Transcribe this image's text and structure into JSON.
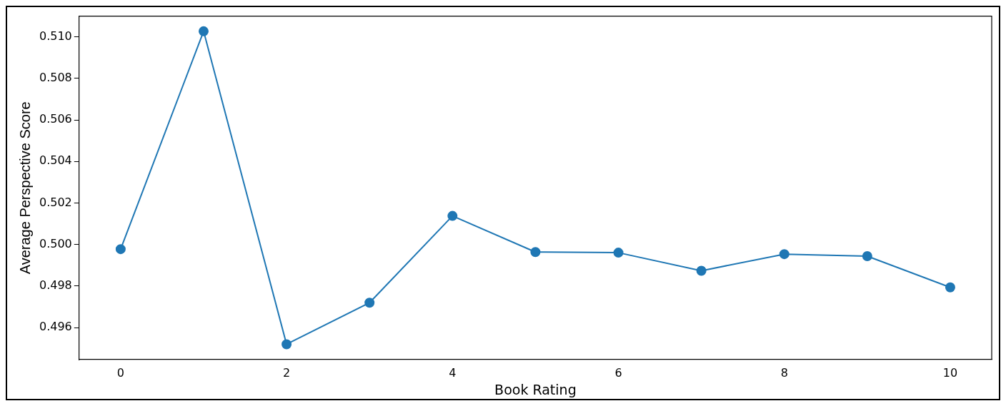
{
  "chart_data": {
    "type": "line",
    "xlabel": "Book Rating",
    "ylabel": "Average Perspective Score",
    "x": [
      0,
      1,
      2,
      3,
      4,
      5,
      6,
      7,
      8,
      9,
      10
    ],
    "series": [
      {
        "color": "#1f77b4",
        "values": [
          0.49978,
          0.51027,
          0.4952,
          0.4972,
          0.50138,
          0.49964,
          0.49961,
          0.49874,
          0.49954,
          0.49944,
          0.49794
        ]
      }
    ],
    "xlim": [
      -0.5,
      10.5
    ],
    "xticks": [
      0,
      2,
      4,
      6,
      8,
      10
    ],
    "ylim": [
      0.49446,
      0.511
    ],
    "yticks": [
      0.496,
      0.498,
      {
        "value": 0.5,
        "label": "0.500"
      },
      0.502,
      0.504,
      0.506,
      0.508,
      {
        "value": 0.51,
        "label": "0.510"
      }
    ],
    "marker": "circle",
    "line_style": "solid",
    "grid": false,
    "legend": false
  }
}
